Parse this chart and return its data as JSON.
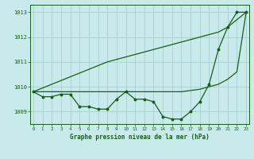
{
  "title": "Graphe pression niveau de la mer (hPa)",
  "bg_color": "#c8eaea",
  "grid_color": "#aacfcf",
  "line_color": "#1a5c1a",
  "x_values": [
    0,
    1,
    2,
    3,
    4,
    5,
    6,
    7,
    8,
    9,
    10,
    11,
    12,
    13,
    14,
    15,
    16,
    17,
    18,
    19,
    20,
    21,
    22,
    23
  ],
  "y_hourly": [
    1009.8,
    1009.6,
    1009.6,
    1009.7,
    1009.7,
    1009.2,
    1009.2,
    1009.1,
    1009.1,
    1009.5,
    1009.8,
    1009.5,
    1009.5,
    1009.4,
    1008.8,
    1008.7,
    1008.7,
    1009.0,
    1009.4,
    1010.1,
    1011.5,
    1012.4,
    1013.0,
    1013.0
  ],
  "y_trend": [
    1009.8,
    1009.95,
    1010.1,
    1010.25,
    1010.4,
    1010.55,
    1010.7,
    1010.85,
    1011.0,
    1011.1,
    1011.2,
    1011.3,
    1011.4,
    1011.5,
    1011.6,
    1011.7,
    1011.8,
    1011.9,
    1012.0,
    1012.1,
    1012.2,
    1012.4,
    1012.7,
    1013.0
  ],
  "y_envelope": [
    1009.8,
    1009.8,
    1009.8,
    1009.8,
    1009.8,
    1009.8,
    1009.8,
    1009.8,
    1009.8,
    1009.8,
    1009.8,
    1009.8,
    1009.8,
    1009.8,
    1009.8,
    1009.8,
    1009.8,
    1009.85,
    1009.9,
    1010.0,
    1010.1,
    1010.3,
    1010.6,
    1013.0
  ],
  "ylim": [
    1008.5,
    1013.3
  ],
  "yticks": [
    1009,
    1010,
    1011,
    1012,
    1013
  ],
  "xlim": [
    -0.3,
    23.3
  ]
}
